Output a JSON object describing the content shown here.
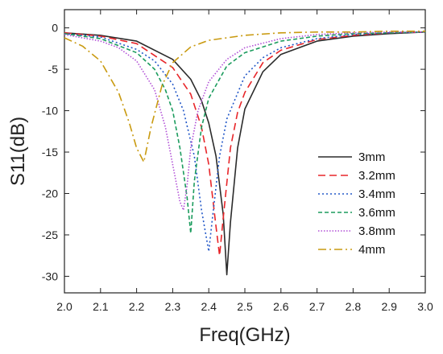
{
  "chart_data": {
    "type": "line",
    "xlabel": "Freq(GHz)",
    "ylabel": "S11(dB)",
    "xlim": [
      2.0,
      3.0
    ],
    "ylim": [
      -32,
      2.2
    ],
    "xticks": [
      "2.0",
      "2.1",
      "2.2",
      "2.3",
      "2.4",
      "2.5",
      "2.6",
      "2.7",
      "2.8",
      "2.9",
      "3.0"
    ],
    "yticks": [
      "0",
      "-5",
      "-10",
      "-15",
      "-20",
      "-25",
      "-30"
    ],
    "grid": false,
    "legend_position": "right",
    "series": [
      {
        "name": "3mm",
        "color": "#2b2b2b",
        "dash": "solid",
        "x": [
          2.0,
          2.1,
          2.2,
          2.3,
          2.35,
          2.38,
          2.4,
          2.42,
          2.44,
          2.45,
          2.46,
          2.48,
          2.5,
          2.55,
          2.6,
          2.7,
          2.8,
          2.9,
          3.0
        ],
        "y": [
          -0.6,
          -0.9,
          -1.6,
          -3.8,
          -6.2,
          -8.8,
          -11.5,
          -15.5,
          -22.5,
          -29.8,
          -23.5,
          -14.5,
          -9.8,
          -5.3,
          -3.2,
          -1.6,
          -1.0,
          -0.7,
          -0.5
        ]
      },
      {
        "name": "3.2mm",
        "color": "#e8262a",
        "dash": "long",
        "x": [
          2.0,
          2.1,
          2.2,
          2.3,
          2.35,
          2.38,
          2.4,
          2.42,
          2.43,
          2.44,
          2.46,
          2.48,
          2.5,
          2.55,
          2.6,
          2.7,
          2.8,
          2.9,
          3.0
        ],
        "y": [
          -0.6,
          -1.0,
          -1.9,
          -4.8,
          -8.0,
          -12.0,
          -16.5,
          -24.0,
          -27.5,
          -23.0,
          -14.5,
          -10.2,
          -7.8,
          -4.2,
          -2.7,
          -1.4,
          -0.9,
          -0.6,
          -0.5
        ]
      },
      {
        "name": "3.4mm",
        "color": "#2358c8",
        "dash": "dot",
        "x": [
          2.0,
          2.1,
          2.2,
          2.25,
          2.3,
          2.33,
          2.36,
          2.38,
          2.4,
          2.41,
          2.43,
          2.45,
          2.5,
          2.55,
          2.6,
          2.7,
          2.8,
          2.9,
          3.0
        ],
        "y": [
          -0.7,
          -1.1,
          -2.6,
          -4.0,
          -6.8,
          -10.0,
          -15.5,
          -22.0,
          -27.0,
          -23.0,
          -15.5,
          -11.0,
          -5.8,
          -3.6,
          -2.4,
          -1.3,
          -0.8,
          -0.6,
          -0.5
        ]
      },
      {
        "name": "3.6mm",
        "color": "#1c9c5e",
        "dash": "dash",
        "x": [
          2.0,
          2.1,
          2.2,
          2.25,
          2.28,
          2.3,
          2.32,
          2.34,
          2.35,
          2.36,
          2.38,
          2.4,
          2.45,
          2.5,
          2.6,
          2.7,
          2.8,
          2.9,
          3.0
        ],
        "y": [
          -0.7,
          -1.3,
          -3.0,
          -5.0,
          -7.5,
          -10.0,
          -14.5,
          -20.5,
          -24.8,
          -18.5,
          -12.0,
          -8.5,
          -4.6,
          -3.0,
          -1.6,
          -1.0,
          -0.7,
          -0.6,
          -0.5
        ]
      },
      {
        "name": "3.8mm",
        "color": "#b14fd6",
        "dash": "finedot",
        "x": [
          2.0,
          2.1,
          2.15,
          2.2,
          2.25,
          2.28,
          2.3,
          2.32,
          2.33,
          2.34,
          2.35,
          2.37,
          2.4,
          2.45,
          2.5,
          2.6,
          2.7,
          2.8,
          2.9,
          3.0
        ],
        "y": [
          -0.8,
          -1.6,
          -2.4,
          -4.0,
          -7.5,
          -12.0,
          -16.5,
          -21.0,
          -22.0,
          -19.0,
          -14.5,
          -10.0,
          -6.5,
          -3.8,
          -2.4,
          -1.3,
          -0.8,
          -0.6,
          -0.5,
          -0.5
        ]
      },
      {
        "name": "4mm",
        "color": "#c99a10",
        "dash": "dashdot",
        "x": [
          2.0,
          2.05,
          2.1,
          2.15,
          2.18,
          2.2,
          2.22,
          2.24,
          2.27,
          2.3,
          2.35,
          2.4,
          2.5,
          2.6,
          2.7,
          2.8,
          2.9,
          3.0
        ],
        "y": [
          -1.2,
          -2.2,
          -4.0,
          -7.8,
          -11.5,
          -14.5,
          -16.2,
          -12.0,
          -7.0,
          -4.2,
          -2.3,
          -1.5,
          -0.9,
          -0.6,
          -0.5,
          -0.5,
          -0.4,
          -0.4
        ]
      }
    ]
  }
}
